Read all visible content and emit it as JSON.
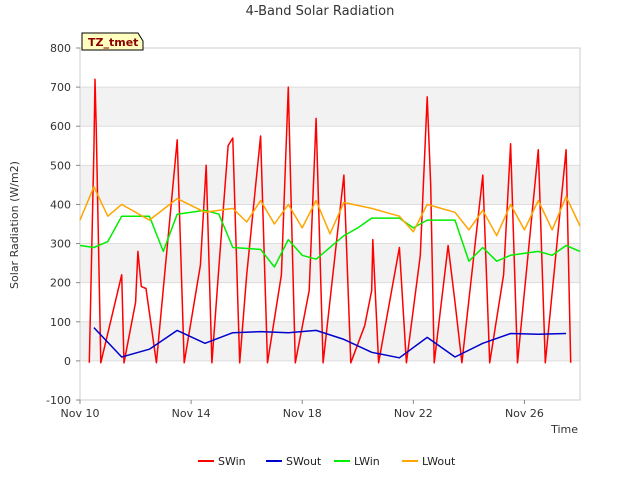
{
  "chart_data": {
    "type": "line",
    "title": "4-Band Solar Radiation",
    "xlabel": "Time",
    "ylabel": "Solar Radiation (W/m2)",
    "site_tag": "TZ_tmet",
    "ylim": [
      -100,
      800
    ],
    "yticks": [
      -100,
      0,
      100,
      200,
      300,
      400,
      500,
      600,
      700,
      800
    ],
    "xlim": [
      "2023-11-10",
      "2023-11-28"
    ],
    "xticks": [
      "Nov 10",
      "Nov 14",
      "Nov 18",
      "Nov 22",
      "Nov 26"
    ],
    "grid": true,
    "legend_position": "bottom",
    "colors": {
      "SWin": "#ff0000",
      "SWout": "#0000cc",
      "LWin": "#00ee00",
      "LWout": "#ffa500"
    },
    "series": [
      {
        "name": "SWin",
        "points": [
          [
            "2023-11-10 08:00",
            -5
          ],
          [
            "2023-11-10 12:00",
            540
          ],
          [
            "2023-11-10 13:00",
            720
          ],
          [
            "2023-11-10 14:00",
            600
          ],
          [
            "2023-11-10 18:00",
            -5
          ],
          [
            "2023-11-11 12:00",
            220
          ],
          [
            "2023-11-11 14:00",
            -5
          ],
          [
            "2023-11-12 00:00",
            150
          ],
          [
            "2023-11-12 02:00",
            280
          ],
          [
            "2023-11-12 05:00",
            190
          ],
          [
            "2023-11-12 09:00",
            185
          ],
          [
            "2023-11-12 18:00",
            -5
          ],
          [
            "2023-11-13 12:00",
            565
          ],
          [
            "2023-11-13 18:00",
            -5
          ],
          [
            "2023-11-14 08:00",
            245
          ],
          [
            "2023-11-14 13:00",
            500
          ],
          [
            "2023-11-14 18:00",
            -5
          ],
          [
            "2023-11-15 00:00",
            240
          ],
          [
            "2023-11-15 08:00",
            550
          ],
          [
            "2023-11-15 12:00",
            570
          ],
          [
            "2023-11-15 18:00",
            -5
          ],
          [
            "2023-11-16 00:00",
            220
          ],
          [
            "2023-11-16 12:00",
            575
          ],
          [
            "2023-11-16 18:00",
            -5
          ],
          [
            "2023-11-17 06:00",
            220
          ],
          [
            "2023-11-17 12:00",
            700
          ],
          [
            "2023-11-17 14:00",
            460
          ],
          [
            "2023-11-17 18:00",
            -5
          ],
          [
            "2023-11-18 06:00",
            180
          ],
          [
            "2023-11-18 12:00",
            620
          ],
          [
            "2023-11-18 18:00",
            -5
          ],
          [
            "2023-11-19 12:00",
            475
          ],
          [
            "2023-11-19 18:00",
            -5
          ],
          [
            "2023-11-20 06:00",
            90
          ],
          [
            "2023-11-20 12:00",
            180
          ],
          [
            "2023-11-20 13:00",
            310
          ],
          [
            "2023-11-20 18:00",
            -5
          ],
          [
            "2023-11-21 12:00",
            290
          ],
          [
            "2023-11-21 18:00",
            -5
          ],
          [
            "2023-11-22 06:00",
            270
          ],
          [
            "2023-11-22 12:00",
            675
          ],
          [
            "2023-11-22 15:00",
            450
          ],
          [
            "2023-11-22 18:00",
            -5
          ],
          [
            "2023-11-23 06:00",
            295
          ],
          [
            "2023-11-23 12:00",
            150
          ],
          [
            "2023-11-23 18:00",
            -5
          ],
          [
            "2023-11-24 12:00",
            475
          ],
          [
            "2023-11-24 18:00",
            -5
          ],
          [
            "2023-11-25 06:00",
            220
          ],
          [
            "2023-11-25 12:00",
            555
          ],
          [
            "2023-11-25 18:00",
            -5
          ],
          [
            "2023-11-26 12:00",
            540
          ],
          [
            "2023-11-26 18:00",
            -5
          ],
          [
            "2023-11-27 12:00",
            540
          ],
          [
            "2023-11-27 16:00",
            -5
          ]
        ]
      },
      {
        "name": "SWout",
        "points": [
          [
            "2023-11-10 12:00",
            85
          ],
          [
            "2023-11-11 12:00",
            10
          ],
          [
            "2023-11-12 12:00",
            30
          ],
          [
            "2023-11-13 12:00",
            78
          ],
          [
            "2023-11-14 12:00",
            45
          ],
          [
            "2023-11-15 12:00",
            72
          ],
          [
            "2023-11-16 12:00",
            75
          ],
          [
            "2023-11-17 12:00",
            72
          ],
          [
            "2023-11-18 12:00",
            78
          ],
          [
            "2023-11-19 12:00",
            55
          ],
          [
            "2023-11-20 12:00",
            22
          ],
          [
            "2023-11-21 12:00",
            8
          ],
          [
            "2023-11-22 12:00",
            60
          ],
          [
            "2023-11-23 12:00",
            10
          ],
          [
            "2023-11-24 12:00",
            45
          ],
          [
            "2023-11-25 12:00",
            70
          ],
          [
            "2023-11-26 12:00",
            68
          ],
          [
            "2023-11-27 12:00",
            70
          ]
        ]
      },
      {
        "name": "LWin",
        "points": [
          [
            "2023-11-10 00:00",
            295
          ],
          [
            "2023-11-10 12:00",
            290
          ],
          [
            "2023-11-11 00:00",
            305
          ],
          [
            "2023-11-11 12:00",
            370
          ],
          [
            "2023-11-12 12:00",
            370
          ],
          [
            "2023-11-13 00:00",
            280
          ],
          [
            "2023-11-13 12:00",
            375
          ],
          [
            "2023-11-14 12:00",
            385
          ],
          [
            "2023-11-15 00:00",
            375
          ],
          [
            "2023-11-15 12:00",
            290
          ],
          [
            "2023-11-16 12:00",
            285
          ],
          [
            "2023-11-17 00:00",
            240
          ],
          [
            "2023-11-17 12:00",
            310
          ],
          [
            "2023-11-18 00:00",
            270
          ],
          [
            "2023-11-18 12:00",
            260
          ],
          [
            "2023-11-19 12:00",
            320
          ],
          [
            "2023-11-20 00:00",
            340
          ],
          [
            "2023-11-20 12:00",
            365
          ],
          [
            "2023-11-21 12:00",
            365
          ],
          [
            "2023-11-22 00:00",
            340
          ],
          [
            "2023-11-22 12:00",
            360
          ],
          [
            "2023-11-23 12:00",
            360
          ],
          [
            "2023-11-24 00:00",
            255
          ],
          [
            "2023-11-24 12:00",
            290
          ],
          [
            "2023-11-25 00:00",
            255
          ],
          [
            "2023-11-25 12:00",
            270
          ],
          [
            "2023-11-26 12:00",
            280
          ],
          [
            "2023-11-27 00:00",
            270
          ],
          [
            "2023-11-27 12:00",
            295
          ],
          [
            "2023-11-28 00:00",
            280
          ]
        ]
      },
      {
        "name": "LWout",
        "points": [
          [
            "2023-11-10 00:00",
            360
          ],
          [
            "2023-11-10 12:00",
            445
          ],
          [
            "2023-11-11 00:00",
            370
          ],
          [
            "2023-11-11 12:00",
            400
          ],
          [
            "2023-11-12 12:00",
            360
          ],
          [
            "2023-11-13 12:00",
            415
          ],
          [
            "2023-11-14 12:00",
            380
          ],
          [
            "2023-11-15 12:00",
            390
          ],
          [
            "2023-11-16 00:00",
            355
          ],
          [
            "2023-11-16 12:00",
            410
          ],
          [
            "2023-11-17 00:00",
            350
          ],
          [
            "2023-11-17 12:00",
            400
          ],
          [
            "2023-11-18 00:00",
            340
          ],
          [
            "2023-11-18 12:00",
            410
          ],
          [
            "2023-11-19 00:00",
            325
          ],
          [
            "2023-11-19 12:00",
            405
          ],
          [
            "2023-11-20 12:00",
            390
          ],
          [
            "2023-11-21 12:00",
            370
          ],
          [
            "2023-11-22 00:00",
            330
          ],
          [
            "2023-11-22 12:00",
            400
          ],
          [
            "2023-11-23 12:00",
            380
          ],
          [
            "2023-11-24 00:00",
            335
          ],
          [
            "2023-11-24 12:00",
            385
          ],
          [
            "2023-11-25 00:00",
            320
          ],
          [
            "2023-11-25 12:00",
            400
          ],
          [
            "2023-11-26 00:00",
            335
          ],
          [
            "2023-11-26 12:00",
            410
          ],
          [
            "2023-11-27 00:00",
            335
          ],
          [
            "2023-11-27 12:00",
            420
          ],
          [
            "2023-11-28 00:00",
            345
          ]
        ]
      }
    ]
  }
}
